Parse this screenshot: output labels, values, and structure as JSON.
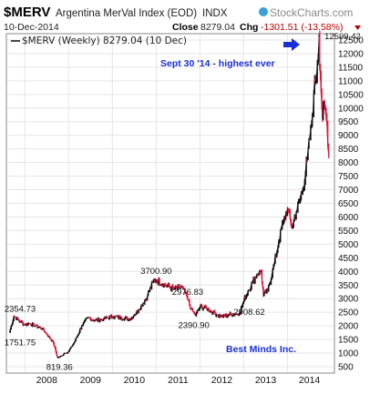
{
  "header": {
    "symbol": "$MERV",
    "name": "Argentina MerVal Index (EOD)",
    "exchange": "INDX",
    "date": "10-Dec-2014",
    "close_label": "Close",
    "close_value": "8279.04",
    "chg_label": "Chg",
    "chg_value": "-1301.51 (-13.58%)",
    "brand": "StockCharts.com",
    "legend": "$MERV (Weekly) 8279.04 (10 Dec)"
  },
  "colors": {
    "up": "#111111",
    "down": "#e0183c",
    "blue_note": "#1a2fd6",
    "brand_dot": "#3aa0d8"
  },
  "chart_data": {
    "type": "line",
    "title": "Argentina MerVal Index (EOD)",
    "series": [
      {
        "name": "$MERV (Weekly)",
        "x": [
          2007.65,
          2007.75,
          2007.9,
          2008.0,
          2008.1,
          2008.25,
          2008.4,
          2008.5,
          2008.65,
          2008.75,
          2008.85,
          2008.9,
          2009.0,
          2009.15,
          2009.3,
          2009.45,
          2009.6,
          2009.8,
          2010.0,
          2010.2,
          2010.4,
          2010.5,
          2010.6,
          2010.8,
          2010.92,
          2011.0,
          2011.2,
          2011.4,
          2011.6,
          2011.72,
          2011.8,
          2011.9,
          2012.0,
          2012.15,
          2012.3,
          2012.4,
          2012.5,
          2012.65,
          2012.8,
          2012.9,
          2013.0,
          2013.1,
          2013.2,
          2013.3,
          2013.4,
          2013.45,
          2013.55,
          2013.7,
          2013.8,
          2013.9,
          2014.0,
          2014.1,
          2014.2,
          2014.35,
          2014.45,
          2014.55,
          2014.6,
          2014.68,
          2014.72,
          2014.75,
          2014.8,
          2014.85,
          2014.9,
          2014.94
        ],
        "values": [
          1751.75,
          2354.73,
          2150,
          2050,
          2100,
          2000,
          1900,
          1700,
          1400,
          819.36,
          900,
          1000,
          1050,
          1450,
          2000,
          2300,
          2200,
          2250,
          2350,
          2300,
          2250,
          2400,
          2600,
          3100,
          3600,
          3700.9,
          3500,
          3350,
          3400,
          2976.83,
          2600,
          2390.9,
          2700,
          2650,
          2500,
          2400,
          2350,
          2400,
          2450,
          2450,
          2908.62,
          3300,
          3600,
          3900,
          4000,
          3100,
          3300,
          4300,
          5100,
          5800,
          6300,
          5600,
          6200,
          7000,
          8100,
          9400,
          10500,
          11600,
          12599.42,
          11200,
          9600,
          10100,
          9400,
          8279.04
        ]
      }
    ],
    "xlabel": "",
    "ylabel": "",
    "xlim": [
      2007.6,
      2015.05
    ],
    "ylim": [
      300,
      12700
    ],
    "x_ticks": [
      "2008",
      "2009",
      "2010",
      "2011",
      "2012",
      "2013",
      "2014"
    ],
    "y_ticks": [
      500,
      1000,
      1500,
      2000,
      2500,
      3000,
      3500,
      4000,
      4500,
      5000,
      5500,
      6000,
      6500,
      7000,
      7500,
      8000,
      8500,
      9000,
      9500,
      10000,
      10500,
      11000,
      11500,
      12000,
      12500
    ],
    "grid": true,
    "annotations": [
      {
        "text": "2354.73"
      },
      {
        "text": "1751.75"
      },
      {
        "text": "819.36"
      },
      {
        "text": "3700.90"
      },
      {
        "text": "2976.83"
      },
      {
        "text": "2390.90"
      },
      {
        "text": "2908.62"
      },
      {
        "text": "12599.42"
      }
    ],
    "notes": [
      "Sept 30 '14 - highest ever",
      "Best Minds Inc."
    ]
  }
}
